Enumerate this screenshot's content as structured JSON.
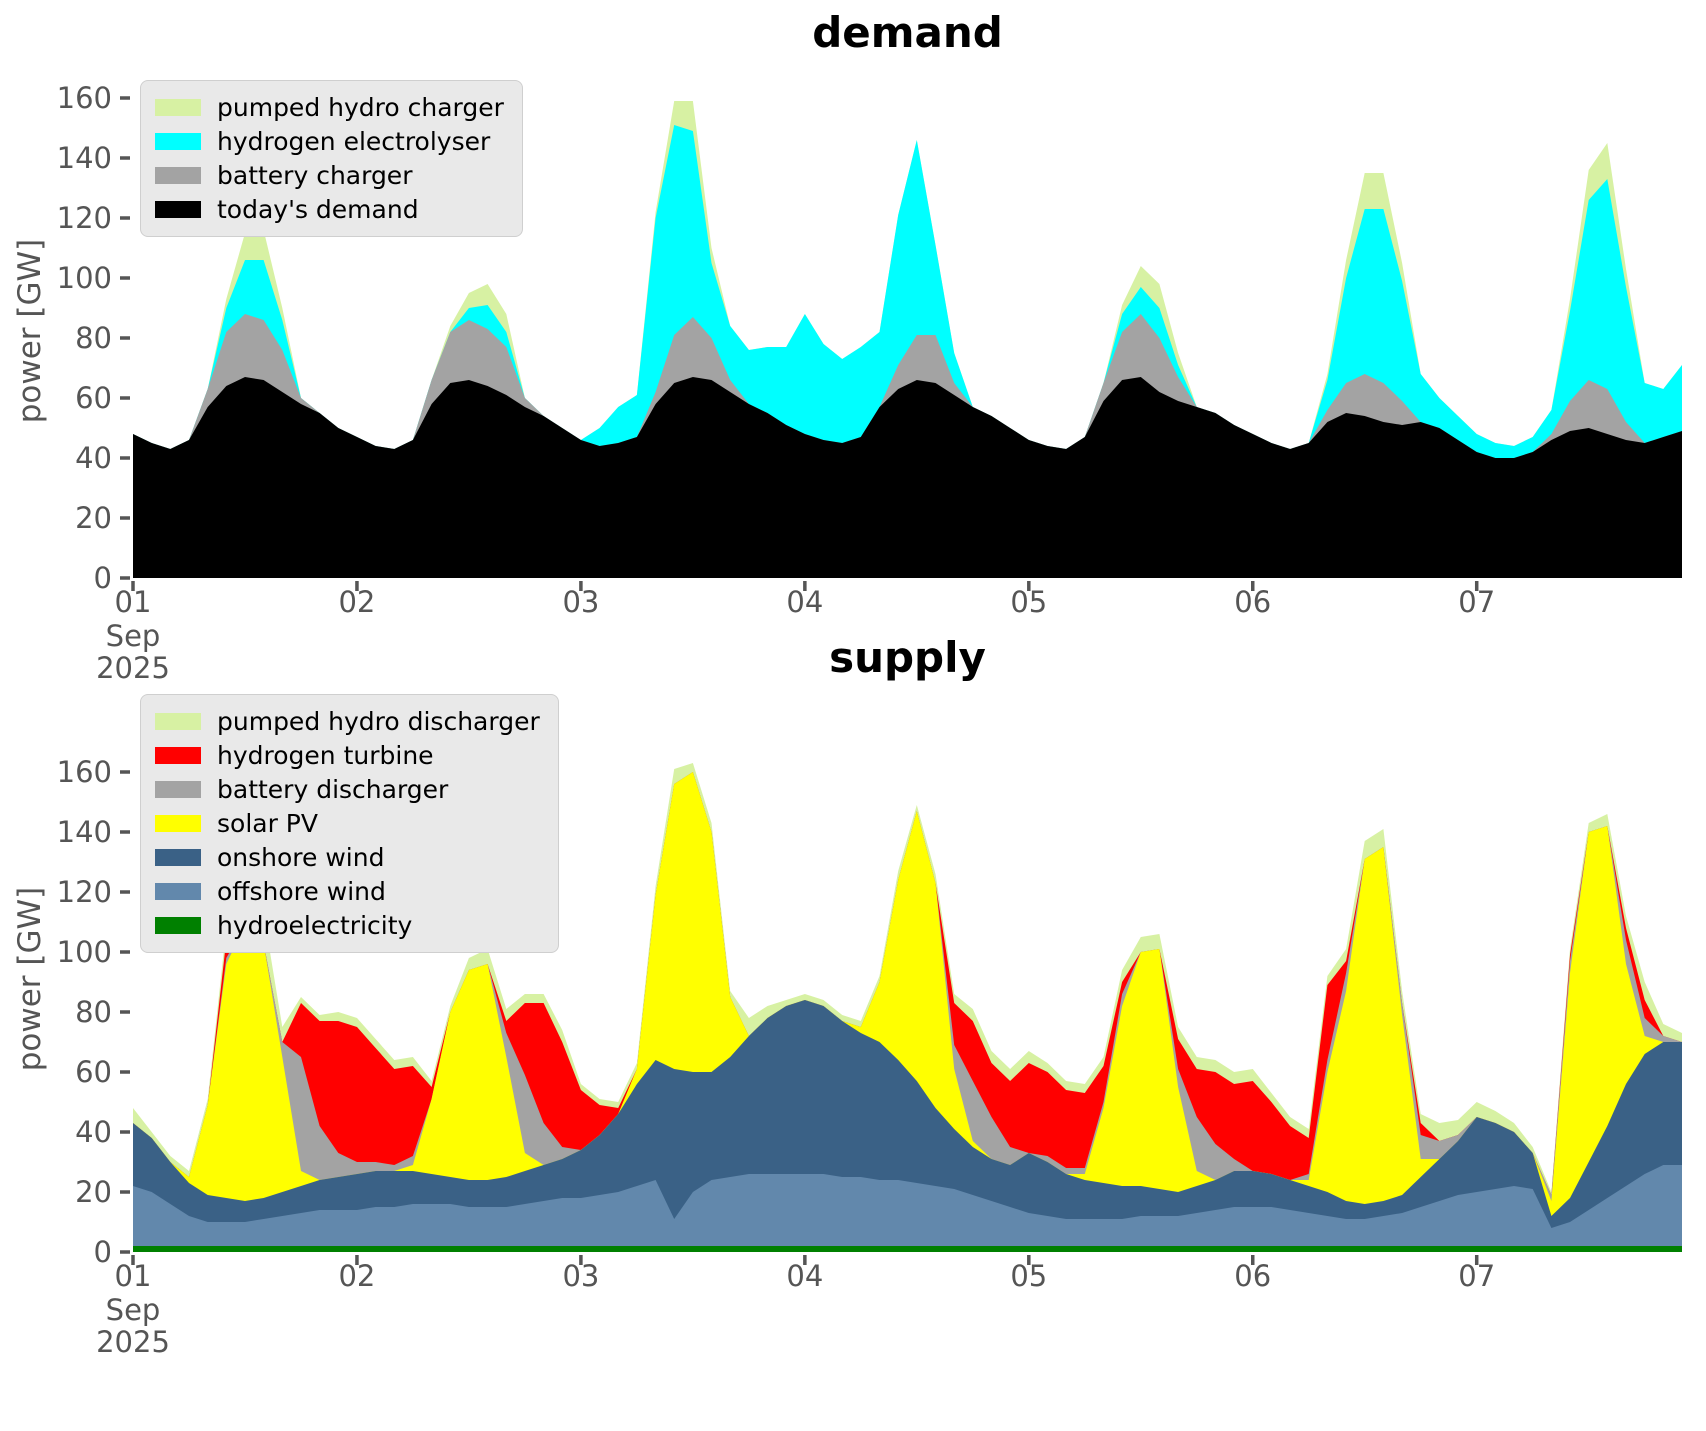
{
  "page": {
    "background": "#ffffff",
    "tick_color": "#555555"
  },
  "chart_data": [
    {
      "type": "area",
      "title": "demand",
      "ylabel": "power [GW]",
      "yticks": [
        0,
        20,
        40,
        60,
        80,
        100,
        120,
        140,
        160
      ],
      "ylim": [
        0,
        167
      ],
      "xtick_labels": [
        "01",
        "02",
        "03",
        "04",
        "05",
        "06",
        "07"
      ],
      "xlabel_month": "Sep",
      "xlabel_year": "2025",
      "x_start_day": 1,
      "x_step_days": 0.0833333,
      "grid": false,
      "legend_position": "upper-left",
      "legend_order_top_to_bottom": [
        "pumped hydro charger",
        "hydrogen electrolyser",
        "battery charger",
        "today's demand"
      ],
      "series_bottom_to_top": [
        {
          "name": "today's demand",
          "color": "#000000",
          "values": [
            48,
            45,
            43,
            46,
            57,
            64,
            67,
            66,
            62,
            58,
            55,
            50,
            47,
            44,
            43,
            46,
            58,
            65,
            66,
            64,
            61,
            57,
            54,
            50,
            46,
            44,
            45,
            47,
            58,
            65,
            67,
            66,
            62,
            58,
            55,
            51,
            48,
            46,
            45,
            47,
            57,
            63,
            66,
            65,
            61,
            57,
            54,
            50,
            46,
            44,
            43,
            47,
            59,
            66,
            67,
            62,
            59,
            57,
            55,
            51,
            48,
            45,
            43,
            45,
            52,
            55,
            54,
            52,
            51,
            52,
            50,
            46,
            42,
            40,
            40,
            42,
            46,
            49,
            50,
            48,
            46,
            45,
            47,
            49
          ]
        },
        {
          "name": "battery charger",
          "color": "#a3a3a3",
          "values": [
            0,
            0,
            0,
            0,
            6,
            18,
            21,
            20,
            14,
            2,
            0,
            0,
            0,
            0,
            0,
            0,
            8,
            17,
            20,
            19,
            16,
            3,
            0,
            0,
            0,
            0,
            0,
            0,
            4,
            16,
            20,
            14,
            4,
            0,
            0,
            0,
            0,
            0,
            0,
            0,
            0,
            8,
            15,
            16,
            4,
            0,
            0,
            0,
            0,
            0,
            0,
            0,
            6,
            16,
            21,
            18,
            8,
            0,
            0,
            0,
            0,
            0,
            0,
            0,
            4,
            10,
            14,
            13,
            8,
            0,
            0,
            0,
            0,
            0,
            0,
            0,
            2,
            10,
            16,
            15,
            6,
            0,
            0,
            0
          ]
        },
        {
          "name": "hydrogen electrolyser",
          "color": "#00ffff",
          "values": [
            0,
            0,
            0,
            0,
            0,
            8,
            18,
            20,
            10,
            0,
            0,
            0,
            0,
            0,
            0,
            0,
            0,
            0,
            4,
            8,
            5,
            0,
            0,
            0,
            0,
            6,
            12,
            14,
            58,
            70,
            62,
            25,
            18,
            18,
            22,
            26,
            40,
            32,
            28,
            30,
            25,
            50,
            65,
            30,
            10,
            0,
            0,
            0,
            0,
            0,
            0,
            0,
            0,
            6,
            9,
            10,
            4,
            0,
            0,
            0,
            0,
            0,
            0,
            0,
            10,
            35,
            55,
            58,
            40,
            16,
            10,
            8,
            6,
            5,
            4,
            5,
            8,
            30,
            60,
            70,
            45,
            20,
            16,
            22
          ]
        },
        {
          "name": "pumped hydro charger",
          "color": "#d7f1a3",
          "values": [
            0,
            0,
            0,
            0,
            0,
            3,
            9,
            10,
            4,
            0,
            0,
            0,
            0,
            0,
            0,
            0,
            0,
            2,
            5,
            7,
            6,
            0,
            0,
            0,
            0,
            0,
            0,
            0,
            2,
            8,
            10,
            5,
            0,
            0,
            0,
            0,
            0,
            0,
            0,
            0,
            0,
            0,
            0,
            0,
            0,
            0,
            0,
            0,
            0,
            0,
            0,
            0,
            0,
            3,
            7,
            8,
            4,
            0,
            0,
            0,
            0,
            0,
            0,
            0,
            2,
            6,
            12,
            12,
            6,
            0,
            0,
            0,
            0,
            0,
            0,
            0,
            0,
            4,
            10,
            12,
            6,
            0,
            0,
            0
          ]
        }
      ]
    },
    {
      "type": "area",
      "title": "supply",
      "ylabel": "power [GW]",
      "yticks": [
        0,
        20,
        40,
        60,
        80,
        100,
        120,
        140,
        160
      ],
      "ylim": [
        0,
        184
      ],
      "xtick_labels": [
        "01",
        "02",
        "03",
        "04",
        "05",
        "06",
        "07"
      ],
      "xlabel_month": "Sep",
      "xlabel_year": "2025",
      "x_start_day": 1,
      "x_step_days": 0.0833333,
      "grid": false,
      "legend_position": "upper-left",
      "legend_order_top_to_bottom": [
        "pumped hydro discharger",
        "hydrogen turbine",
        "battery discharger",
        "solar PV",
        "onshore wind",
        "offshore wind",
        "hydroelectricity"
      ],
      "series_bottom_to_top": [
        {
          "name": "hydroelectricity",
          "color": "#008000",
          "values": [
            2,
            2,
            2,
            2,
            2,
            2,
            2,
            2,
            2,
            2,
            2,
            2,
            2,
            2,
            2,
            2,
            2,
            2,
            2,
            2,
            2,
            2,
            2,
            2,
            2,
            2,
            2,
            2,
            2,
            2,
            2,
            2,
            2,
            2,
            2,
            2,
            2,
            2,
            2,
            2,
            2,
            2,
            2,
            2,
            2,
            2,
            2,
            2,
            2,
            2,
            2,
            2,
            2,
            2,
            2,
            2,
            2,
            2,
            2,
            2,
            2,
            2,
            2,
            2,
            2,
            2,
            2,
            2,
            2,
            2,
            2,
            2,
            2,
            2,
            2,
            2,
            2,
            2,
            2,
            2,
            2,
            2,
            2,
            2
          ]
        },
        {
          "name": "offshore wind",
          "color": "#6288ac",
          "values": [
            20,
            18,
            14,
            10,
            8,
            8,
            8,
            9,
            10,
            11,
            12,
            12,
            12,
            13,
            13,
            14,
            14,
            14,
            13,
            13,
            13,
            14,
            15,
            16,
            16,
            17,
            18,
            20,
            22,
            9,
            18,
            22,
            23,
            24,
            24,
            24,
            24,
            24,
            23,
            23,
            22,
            22,
            21,
            20,
            19,
            17,
            15,
            13,
            11,
            10,
            9,
            9,
            9,
            9,
            10,
            10,
            10,
            11,
            12,
            13,
            13,
            13,
            12,
            11,
            10,
            9,
            9,
            10,
            11,
            13,
            15,
            17,
            18,
            19,
            20,
            19,
            6,
            8,
            12,
            16,
            20,
            24,
            27,
            27
          ]
        },
        {
          "name": "onshore wind",
          "color": "#3a6186",
          "values": [
            21,
            18,
            14,
            11,
            9,
            8,
            7,
            7,
            8,
            9,
            10,
            11,
            12,
            12,
            12,
            11,
            10,
            9,
            9,
            9,
            10,
            11,
            12,
            13,
            16,
            20,
            26,
            34,
            40,
            50,
            40,
            36,
            40,
            46,
            52,
            56,
            58,
            56,
            52,
            48,
            46,
            40,
            34,
            26,
            20,
            16,
            14,
            14,
            20,
            18,
            15,
            13,
            12,
            11,
            10,
            9,
            8,
            9,
            10,
            12,
            12,
            11,
            10,
            9,
            8,
            6,
            5,
            5,
            6,
            10,
            14,
            18,
            25,
            22,
            18,
            12,
            4,
            8,
            16,
            24,
            34,
            40,
            41,
            41
          ]
        },
        {
          "name": "solar PV",
          "color": "#ffff00",
          "values": [
            0,
            0,
            0,
            2,
            30,
            78,
            92,
            85,
            45,
            5,
            0,
            0,
            0,
            0,
            0,
            2,
            25,
            55,
            70,
            72,
            40,
            6,
            0,
            0,
            0,
            0,
            0,
            5,
            55,
            95,
            100,
            80,
            20,
            0,
            0,
            0,
            0,
            0,
            0,
            2,
            20,
            60,
            90,
            75,
            20,
            2,
            0,
            0,
            0,
            0,
            0,
            2,
            25,
            60,
            78,
            80,
            35,
            5,
            0,
            0,
            0,
            0,
            0,
            2,
            40,
            70,
            115,
            118,
            60,
            6,
            0,
            0,
            0,
            0,
            0,
            0,
            5,
            75,
            110,
            100,
            40,
            6,
            0,
            0
          ]
        },
        {
          "name": "battery discharger",
          "color": "#a3a3a3",
          "values": [
            0,
            0,
            0,
            0,
            0,
            2,
            0,
            0,
            5,
            38,
            18,
            8,
            4,
            3,
            2,
            3,
            0,
            0,
            0,
            0,
            8,
            26,
            14,
            4,
            0,
            0,
            0,
            0,
            0,
            0,
            0,
            0,
            0,
            0,
            0,
            0,
            0,
            0,
            0,
            0,
            0,
            0,
            0,
            0,
            8,
            20,
            14,
            6,
            0,
            2,
            2,
            2,
            2,
            4,
            0,
            0,
            6,
            18,
            12,
            4,
            0,
            0,
            0,
            2,
            4,
            6,
            0,
            0,
            4,
            8,
            6,
            2,
            0,
            0,
            0,
            0,
            2,
            4,
            0,
            0,
            8,
            6,
            2,
            0
          ]
        },
        {
          "name": "hydrogen turbine",
          "color": "#ff0000",
          "values": [
            0,
            0,
            0,
            0,
            0,
            6,
            2,
            0,
            0,
            18,
            35,
            44,
            45,
            38,
            32,
            30,
            4,
            0,
            0,
            0,
            4,
            24,
            40,
            35,
            20,
            10,
            2,
            0,
            0,
            0,
            0,
            0,
            0,
            0,
            0,
            0,
            0,
            0,
            0,
            0,
            0,
            0,
            0,
            0,
            14,
            20,
            18,
            22,
            30,
            28,
            26,
            25,
            12,
            4,
            0,
            0,
            10,
            16,
            24,
            25,
            30,
            24,
            18,
            12,
            25,
            4,
            0,
            0,
            0,
            4,
            0,
            0,
            0,
            0,
            0,
            0,
            0,
            2,
            0,
            0,
            4,
            6,
            0,
            0
          ]
        },
        {
          "name": "pumped hydro discharger",
          "color": "#d7f1a3",
          "values": [
            5,
            2,
            2,
            2,
            2,
            4,
            8,
            10,
            5,
            2,
            2,
            3,
            3,
            3,
            3,
            3,
            2,
            2,
            4,
            5,
            4,
            3,
            3,
            4,
            2,
            2,
            2,
            2,
            3,
            5,
            3,
            3,
            2,
            6,
            4,
            2,
            2,
            2,
            2,
            2,
            2,
            3,
            2,
            3,
            3,
            4,
            4,
            4,
            4,
            3,
            3,
            3,
            3,
            4,
            5,
            5,
            4,
            4,
            4,
            4,
            4,
            3,
            3,
            3,
            3,
            4,
            6,
            6,
            4,
            3,
            6,
            5,
            5,
            4,
            3,
            2,
            1,
            2,
            3,
            4,
            4,
            6,
            4,
            3
          ]
        }
      ]
    }
  ]
}
